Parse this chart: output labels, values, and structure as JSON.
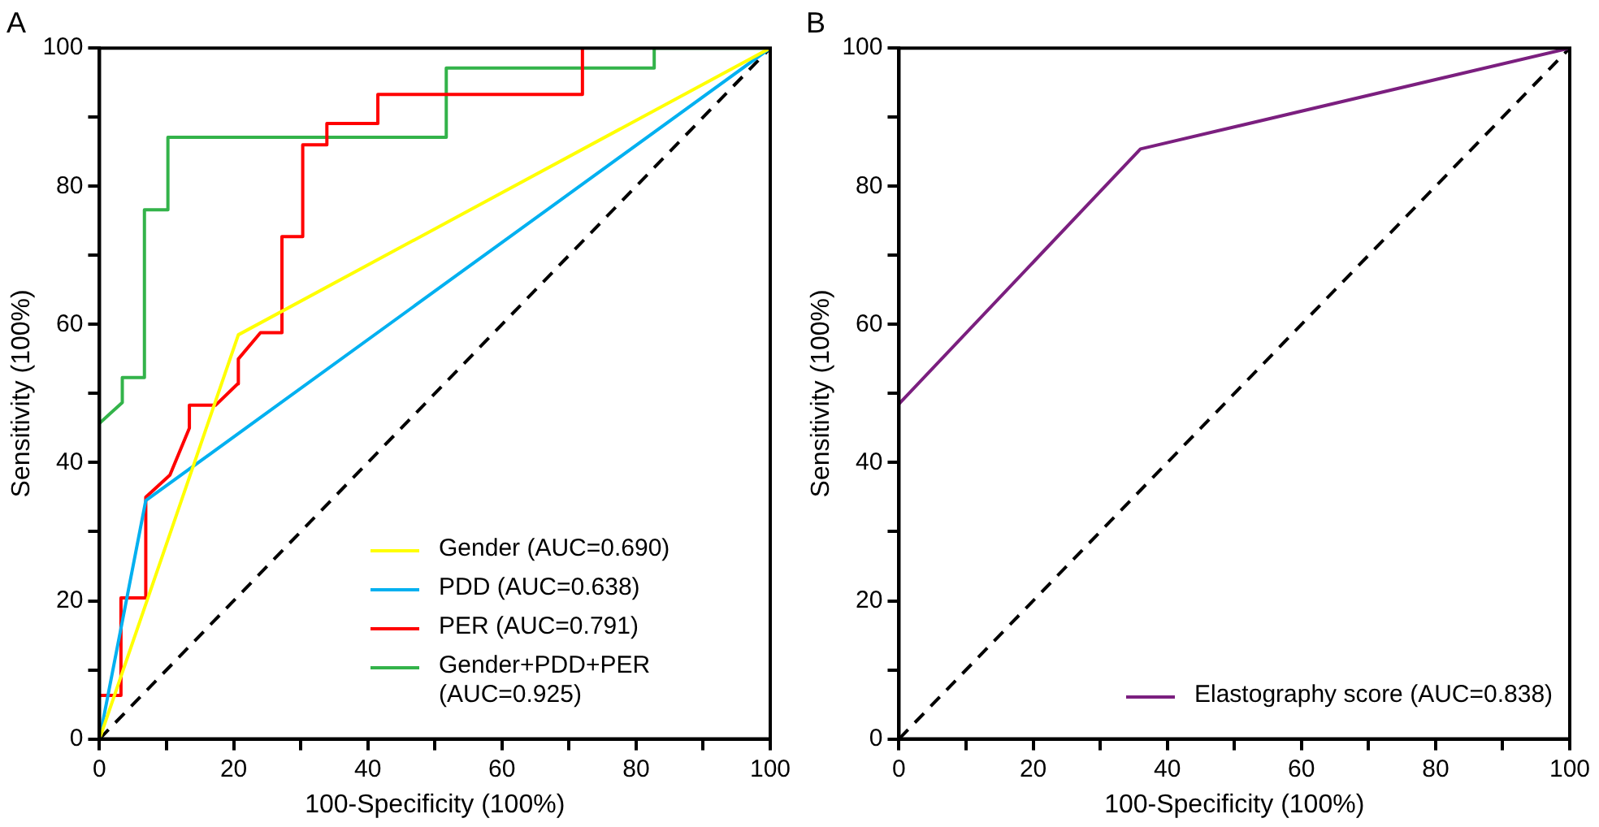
{
  "chart_data": [
    {
      "type": "line",
      "title": "A",
      "xlabel": "100-Specificity (100%)",
      "ylabel": "Sensitivity (100%)",
      "xlim": [
        0,
        100
      ],
      "ylim": [
        0,
        100
      ],
      "xticks": [
        0,
        {
          "value": 10,
          "label": null
        },
        20,
        {
          "value": 30,
          "label": null
        },
        40,
        {
          "value": 50,
          "label": null
        },
        60,
        {
          "value": 70,
          "label": null
        },
        80,
        {
          "value": 90,
          "label": null
        },
        100
      ],
      "yticks": [
        0,
        {
          "value": 10,
          "label": null
        },
        20,
        {
          "value": 30,
          "label": null
        },
        40,
        {
          "value": 50,
          "label": null
        },
        60,
        {
          "value": 70,
          "label": null
        },
        80,
        {
          "value": 90,
          "label": null
        },
        100
      ],
      "grid": false,
      "legend": "bottom right",
      "marker": "none",
      "series": [
        {
          "name": "Gender (AUC=0.690)",
          "color": "#ffff00",
          "x": [
            0,
            20.7,
            100
          ],
          "values": [
            0,
            58.5,
            100
          ]
        },
        {
          "name": "PDD (AUC=0.638)",
          "color": "#00b0f0",
          "x": [
            0,
            6.9,
            100
          ],
          "values": [
            0,
            34.5,
            100
          ]
        },
        {
          "name": "PER (AUC=0.791)",
          "color": "#ff0000",
          "x": [
            0,
            3.2,
            3.2,
            6.9,
            6.9,
            10.5,
            13.4,
            13.4,
            17.3,
            20.6,
            20.7,
            24,
            27.2,
            27.2,
            30.3,
            30.3,
            33.9,
            33.9,
            41.5,
            41.5,
            72,
            72
          ],
          "values": [
            6.3,
            6.3,
            20.4,
            20.4,
            35,
            38.2,
            45,
            48.3,
            48.3,
            51.4,
            55,
            58.8,
            58.8,
            72.7,
            72.7,
            86,
            86,
            89.1,
            89.1,
            93.3,
            93.3,
            100
          ]
        },
        {
          "name": "Gender+PDD+PER (AUC=0.925)",
          "color": "#33b34a",
          "x": [
            0,
            3.4,
            3.4,
            6.6,
            6.7,
            10.2,
            10.2,
            51.7,
            51.7,
            82.7,
            82.7,
            100
          ],
          "values": [
            45.7,
            48.7,
            52.3,
            52.3,
            76.6,
            76.6,
            87.1,
            87.1,
            97.1,
            97.1,
            100,
            100
          ]
        },
        {
          "color": "#000000",
          "line_style": "dashed",
          "x": [
            0,
            100
          ],
          "values": [
            0,
            100
          ]
        }
      ]
    },
    {
      "type": "line",
      "title": "B",
      "xlabel": "100-Specificity (100%)",
      "ylabel": "Sensitivity (100%)",
      "xlim": [
        0,
        100
      ],
      "ylim": [
        0,
        100
      ],
      "xticks": [
        0,
        {
          "value": 10,
          "label": null
        },
        20,
        {
          "value": 30,
          "label": null
        },
        40,
        {
          "value": 50,
          "label": null
        },
        60,
        {
          "value": 70,
          "label": null
        },
        80,
        {
          "value": 90,
          "label": null
        },
        100
      ],
      "yticks": [
        0,
        {
          "value": 10,
          "label": null
        },
        20,
        {
          "value": 30,
          "label": null
        },
        40,
        {
          "value": 50,
          "label": null
        },
        60,
        {
          "value": 70,
          "label": null
        },
        80,
        {
          "value": 90,
          "label": null
        },
        100
      ],
      "grid": false,
      "legend": "bottom right",
      "marker": "none",
      "series": [
        {
          "name": "Elastography score (AUC=0.838)",
          "color": "#7b1f7f",
          "x": [
            0,
            36,
            100
          ],
          "values": [
            48.5,
            85.4,
            100
          ]
        },
        {
          "color": "#000000",
          "line_style": "dashed",
          "x": [
            0,
            100
          ],
          "values": [
            0,
            100
          ]
        }
      ]
    }
  ]
}
